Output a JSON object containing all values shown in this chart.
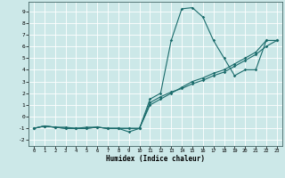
{
  "xlabel": "Humidex (Indice chaleur)",
  "bg_color": "#cce8e8",
  "grid_color": "#ffffff",
  "line_color": "#1a6b6b",
  "xlim": [
    -0.5,
    23.5
  ],
  "ylim": [
    -2.5,
    9.8
  ],
  "xticks": [
    0,
    1,
    2,
    3,
    4,
    5,
    6,
    7,
    8,
    9,
    10,
    11,
    12,
    13,
    14,
    15,
    16,
    17,
    18,
    19,
    20,
    21,
    22,
    23
  ],
  "yticks": [
    -2,
    -1,
    0,
    1,
    2,
    3,
    4,
    5,
    6,
    7,
    8,
    9
  ],
  "line1_x": [
    0,
    1,
    2,
    3,
    4,
    5,
    6,
    7,
    8,
    9,
    10,
    11,
    12,
    13,
    14,
    15,
    16,
    17,
    18,
    19,
    20,
    21,
    22,
    23
  ],
  "line1_y": [
    -1,
    -0.8,
    -0.9,
    -1,
    -1,
    -1,
    -0.9,
    -1,
    -1,
    -1,
    -1,
    1.5,
    2.0,
    6.5,
    9.2,
    9.3,
    8.5,
    6.5,
    5.0,
    3.5,
    4.0,
    4.0,
    6.5,
    6.5
  ],
  "line2_x": [
    0,
    1,
    2,
    3,
    4,
    5,
    6,
    7,
    8,
    9,
    10,
    11,
    12,
    13,
    14,
    15,
    16,
    17,
    18,
    19,
    20,
    21,
    22,
    23
  ],
  "line2_y": [
    -1,
    -0.8,
    -0.9,
    -0.9,
    -1,
    -0.9,
    -0.9,
    -1,
    -1,
    -1.3,
    -1,
    1.0,
    1.5,
    2.0,
    2.5,
    3.0,
    3.3,
    3.7,
    4.0,
    4.5,
    5.0,
    5.5,
    6.5,
    6.5
  ],
  "line3_x": [
    0,
    1,
    2,
    3,
    4,
    5,
    6,
    7,
    8,
    9,
    10,
    11,
    12,
    13,
    14,
    15,
    16,
    17,
    18,
    19,
    20,
    21,
    22,
    23
  ],
  "line3_y": [
    -1,
    -0.8,
    -0.9,
    -1,
    -1,
    -1,
    -0.9,
    -1,
    -1,
    -1,
    -1,
    1.2,
    1.7,
    2.1,
    2.4,
    2.8,
    3.1,
    3.5,
    3.8,
    4.3,
    4.8,
    5.3,
    6.0,
    6.5
  ]
}
